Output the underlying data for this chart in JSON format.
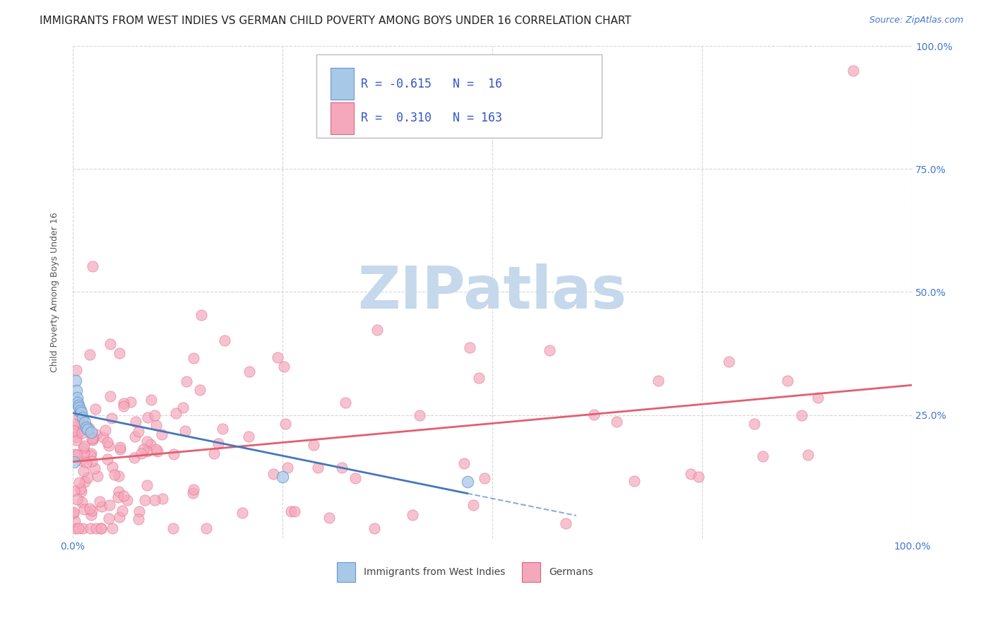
{
  "title": "IMMIGRANTS FROM WEST INDIES VS GERMAN CHILD POVERTY AMONG BOYS UNDER 16 CORRELATION CHART",
  "source": "Source: ZipAtlas.com",
  "ylabel": "Child Poverty Among Boys Under 16",
  "xlim": [
    0,
    1.0
  ],
  "ylim": [
    0,
    1.0
  ],
  "xticks": [
    0,
    0.25,
    0.5,
    0.75,
    1.0
  ],
  "yticks": [
    0.25,
    0.5,
    0.75,
    1.0
  ],
  "xticklabels": [
    "0.0%",
    "",
    "",
    "",
    "100.0%"
  ],
  "yticklabels_right": [
    "25.0%",
    "50.0%",
    "75.0%",
    "100.0%"
  ],
  "legend_labels": [
    "Immigrants from West Indies",
    "Germans"
  ],
  "R_west_indies": -0.615,
  "N_west_indies": 16,
  "R_germans": 0.31,
  "N_germans": 163,
  "color_west_indies_fill": "#a8c8e8",
  "color_west_indies_edge": "#6699cc",
  "color_germans_fill": "#f5a8bc",
  "color_germans_edge": "#e06080",
  "color_line_west_indies": "#4477bb",
  "color_line_germans": "#e06070",
  "color_legend_text": "#3355cc",
  "color_tick_labels": "#4477cc",
  "background_color": "#ffffff",
  "grid_color": "#cccccc",
  "watermark_text": "ZIPatlas",
  "watermark_color": "#c5d8ec",
  "seed": 42,
  "title_fontsize": 11,
  "axis_label_fontsize": 9,
  "tick_fontsize": 10,
  "watermark_fontsize": 60,
  "legend_fontsize": 12
}
